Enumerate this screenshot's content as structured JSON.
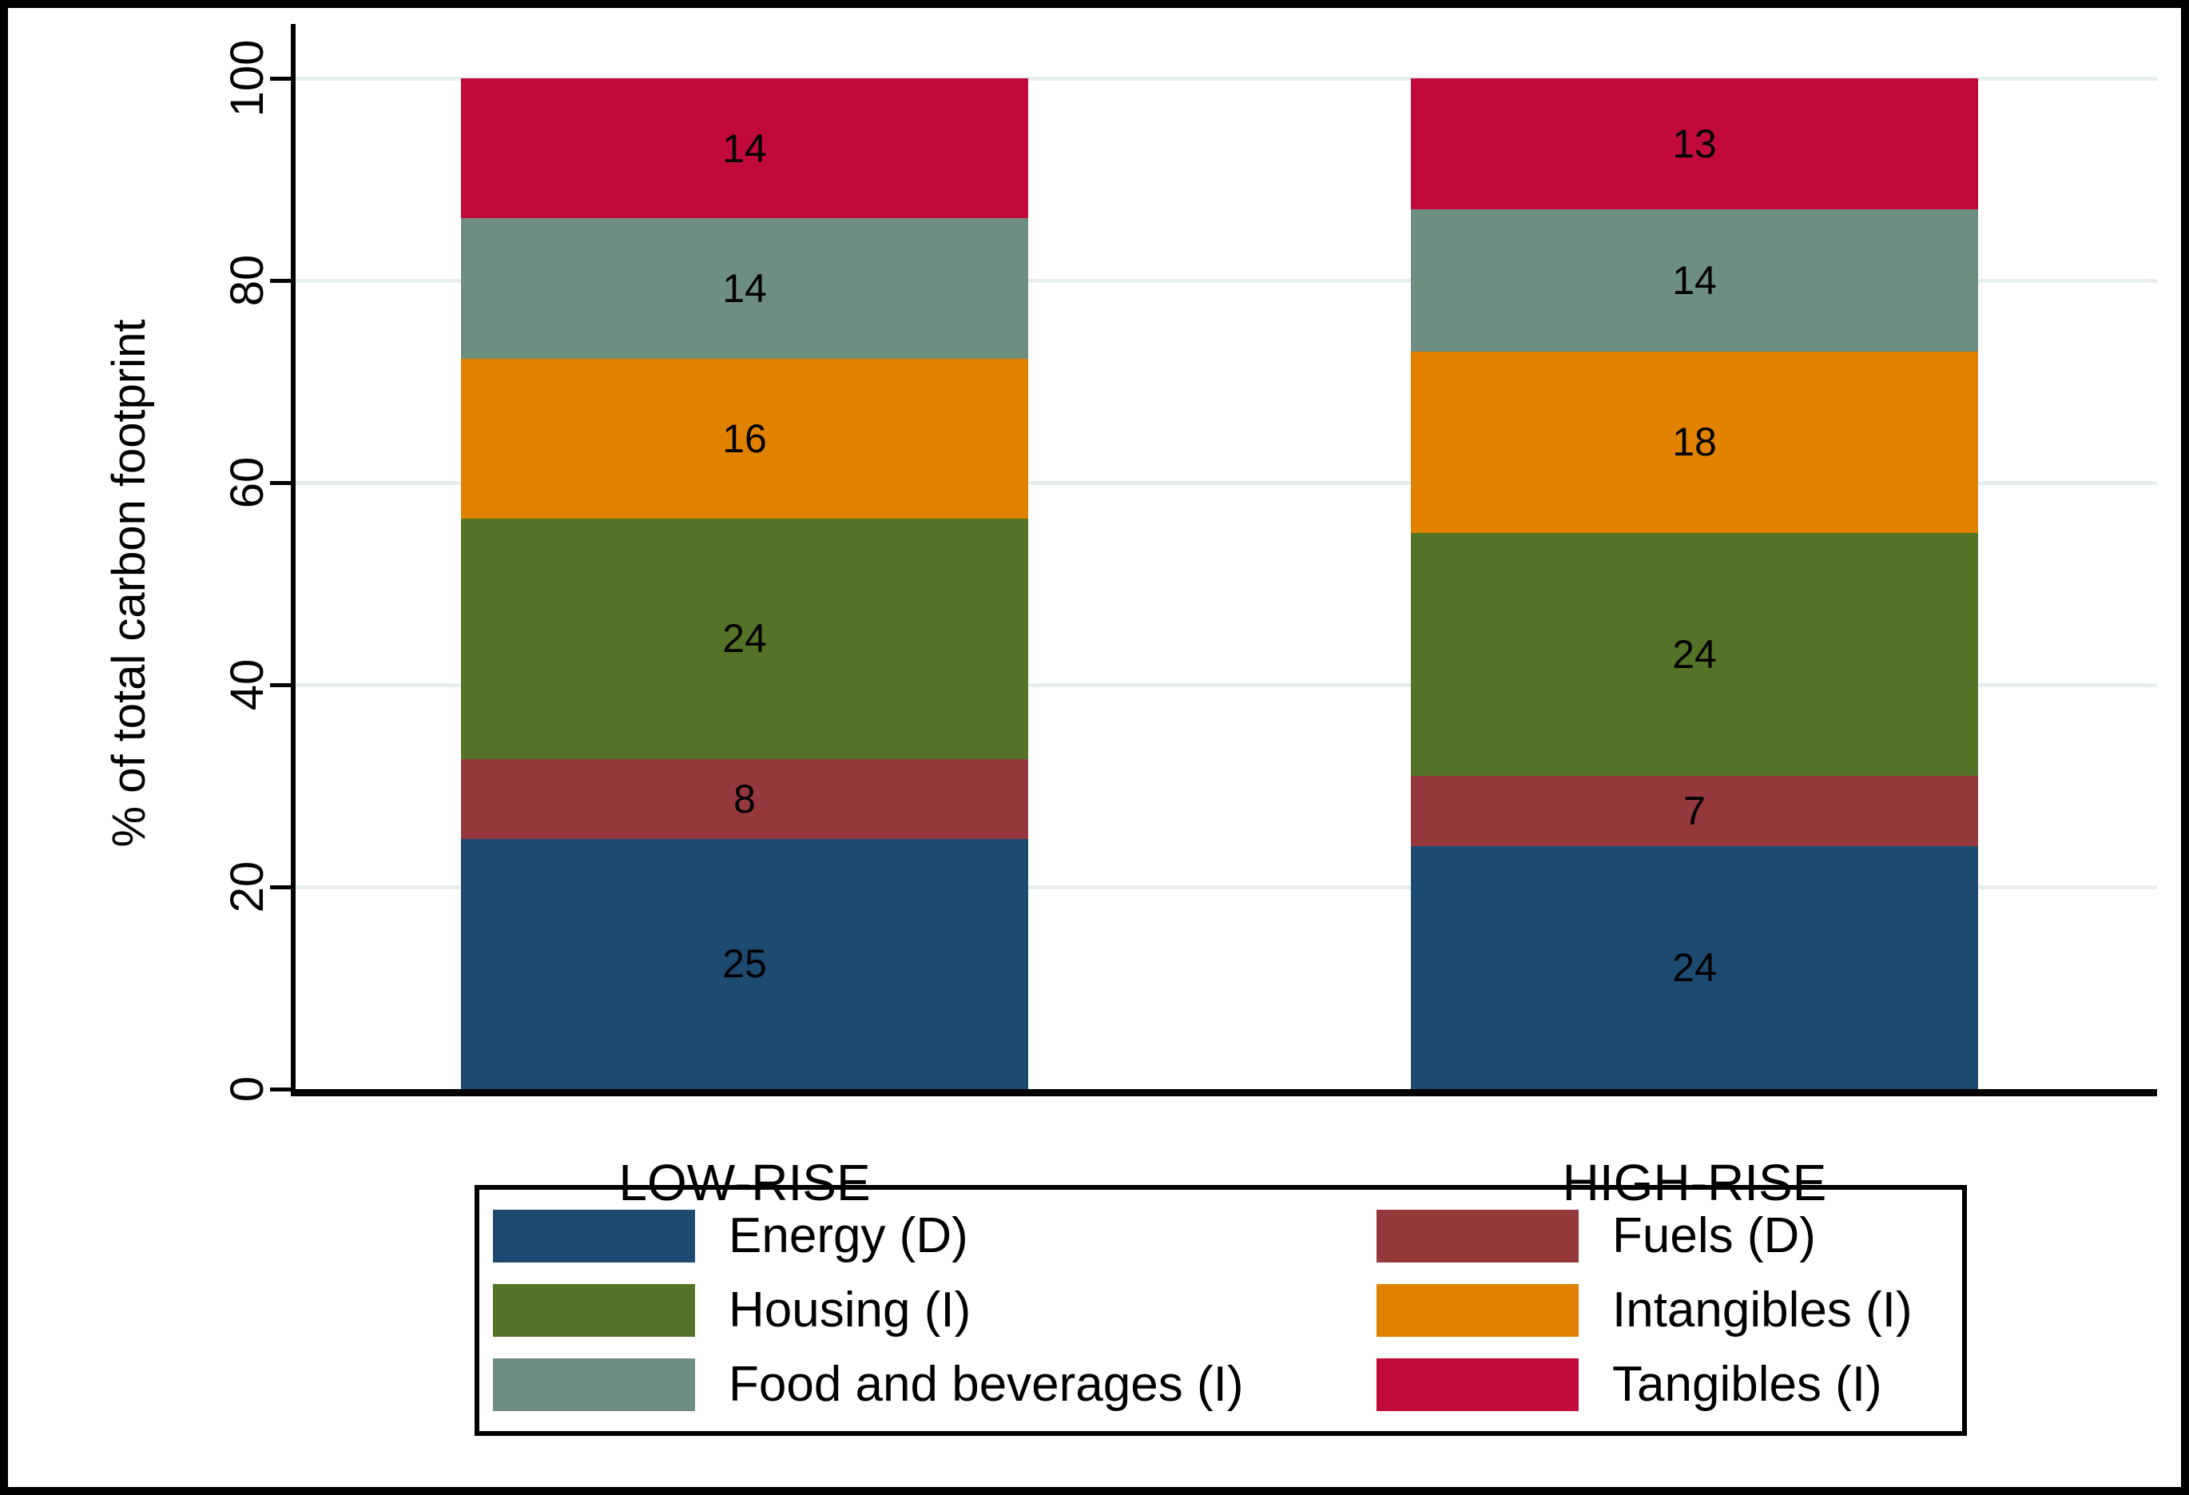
{
  "figure": {
    "background": "#ffffff",
    "border_color": "#000000"
  },
  "chart_data": {
    "type": "bar",
    "stacked": true,
    "title": "",
    "categories": [
      "LOW-RISE",
      "HIGH-RISE"
    ],
    "series": [
      {
        "name": "Energy (D)",
        "color": "#1d4a70",
        "values": [
          25,
          24
        ]
      },
      {
        "name": "Fuels (D)",
        "color": "#94383c",
        "values": [
          8,
          7
        ]
      },
      {
        "name": "Housing (I)",
        "color": "#537327",
        "values": [
          24,
          24
        ]
      },
      {
        "name": "Intangibles (I)",
        "color": "#e08100",
        "values": [
          16,
          18
        ]
      },
      {
        "name": "Food and beverages (I)",
        "color": "#6f8e82",
        "values": [
          14,
          14
        ]
      },
      {
        "name": "Tangibles (I)",
        "color": "#c20a3a",
        "values": [
          14,
          13
        ]
      }
    ],
    "ylabel": "% of total carbon footprint",
    "xlabel": "",
    "yticks": [
      0,
      20,
      40,
      60,
      80,
      100
    ],
    "ylim": [
      0,
      100
    ],
    "grid": true,
    "gridline_color": "#e7eef0",
    "axis_color": "#000000",
    "value_label_color": "#000000",
    "legend_position": "bottom"
  },
  "legend": {
    "columns": [
      [
        "Energy (D)",
        "Housing (I)",
        "Food and beverages (I)"
      ],
      [
        "Fuels (D)",
        "Intangibles (I)",
        "Tangibles (I)"
      ]
    ]
  }
}
